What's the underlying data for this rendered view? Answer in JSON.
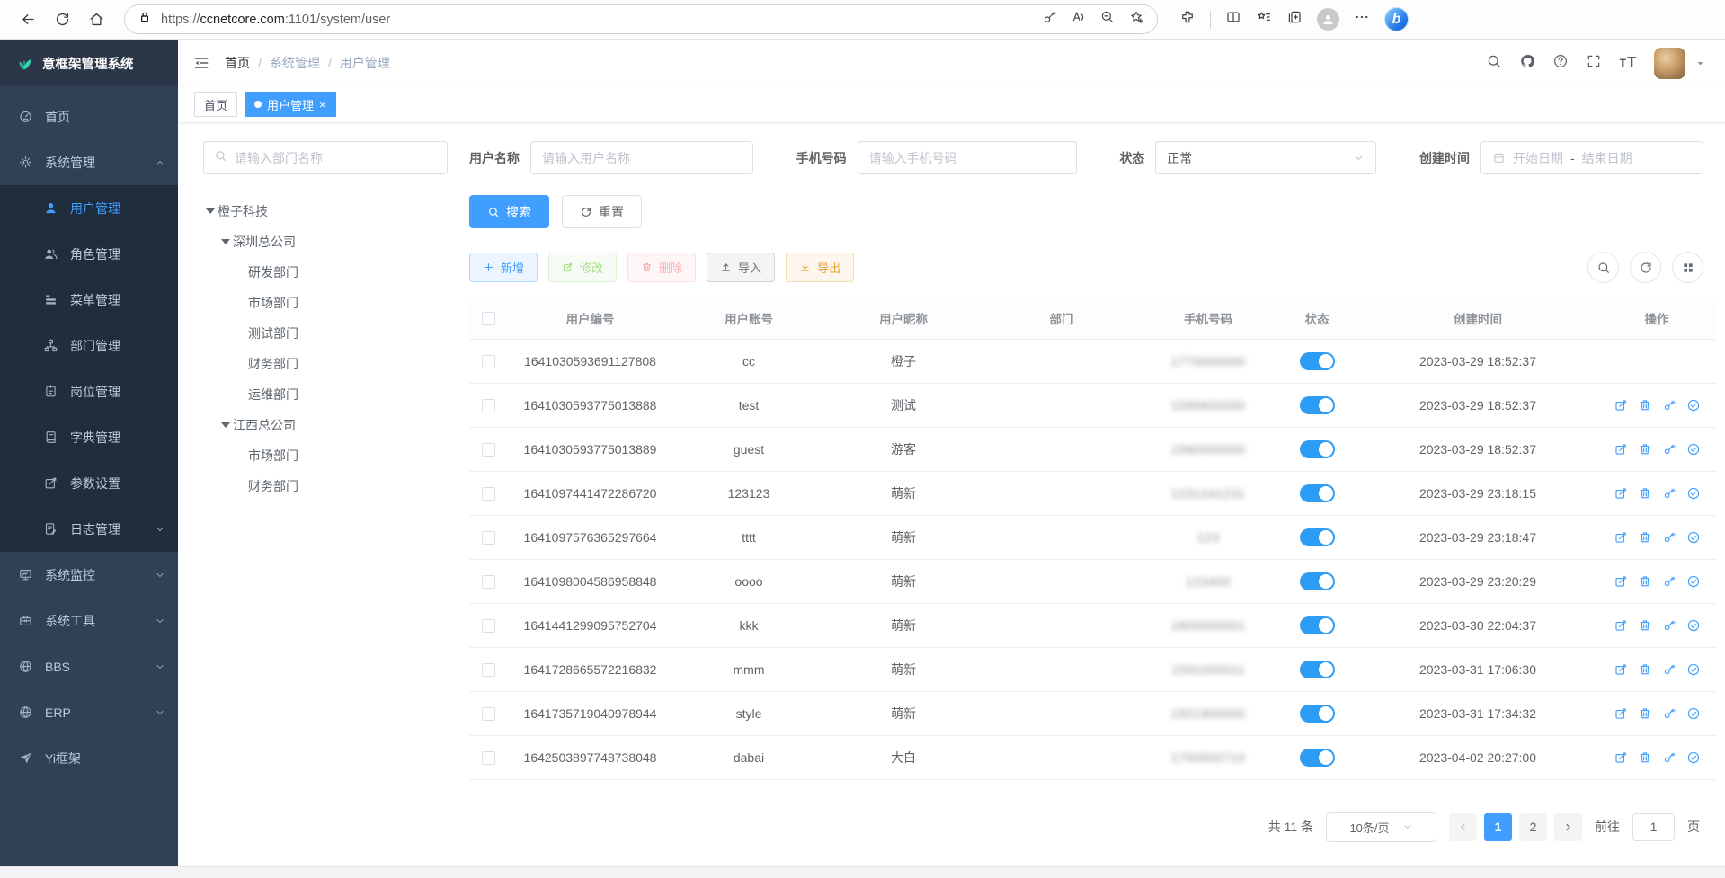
{
  "colors": {
    "primary": "#409eff",
    "sidebar_bg": "#304156",
    "submenu_bg": "#1f2d3d",
    "success": "#67c23a",
    "danger": "#f56c6c",
    "warning": "#e6a23c",
    "info": "#909399",
    "toggle_on": "#2d9cf4"
  },
  "browser": {
    "url_prefix": "https://",
    "url_domain": "ccnetcore.com",
    "url_rest": ":1101/system/user",
    "nav_icons": [
      "back-icon",
      "refresh-icon",
      "home-icon"
    ],
    "address_icons": [
      "lock-icon",
      "key-icon",
      "read-aloud-icon",
      "zoom-out-icon",
      "add-favorite-icon"
    ],
    "toolbar_icons": [
      "extensions-icon",
      "split-screen-icon",
      "favorites-icon",
      "collections-icon",
      "profile-icon",
      "more-icon",
      "copilot-icon"
    ],
    "copilot_glyph": "b"
  },
  "app": {
    "title": "意框架管理系统",
    "logo_icon": "leaf-icon"
  },
  "sidebar": {
    "items": [
      {
        "label": "首页",
        "icon": "dashboard"
      },
      {
        "label": "系统管理",
        "icon": "gear",
        "expanded": true,
        "children": [
          {
            "label": "用户管理",
            "icon": "user",
            "active": true
          },
          {
            "label": "角色管理",
            "icon": "user-group"
          },
          {
            "label": "菜单管理",
            "icon": "menu-list"
          },
          {
            "label": "部门管理",
            "icon": "org-tree"
          },
          {
            "label": "岗位管理",
            "icon": "id-badge"
          },
          {
            "label": "字典管理",
            "icon": "dictionary"
          },
          {
            "label": "参数设置",
            "icon": "param-edit"
          },
          {
            "label": "日志管理",
            "icon": "log-file",
            "collapsible": true
          }
        ]
      },
      {
        "label": "系统监控",
        "icon": "monitor",
        "collapsible": true
      },
      {
        "label": "系统工具",
        "icon": "toolbox",
        "collapsible": true
      },
      {
        "label": "BBS",
        "icon": "globe",
        "collapsible": true
      },
      {
        "label": "ERP",
        "icon": "globe",
        "collapsible": true
      },
      {
        "label": "Yi框架",
        "icon": "paper-plane"
      }
    ]
  },
  "topbar": {
    "breadcrumb": [
      "首页",
      "系统管理",
      "用户管理"
    ],
    "action_icons": [
      "search-icon",
      "github-icon",
      "help-icon",
      "fullscreen-icon",
      "font-size-icon"
    ],
    "font_size_glyph": "тT"
  },
  "tabs": [
    {
      "label": "首页",
      "active": false
    },
    {
      "label": "用户管理",
      "active": true,
      "closable": true
    }
  ],
  "dept_panel": {
    "search_placeholder": "请输入部门名称",
    "tree": [
      {
        "label": "橙子科技",
        "level": 0,
        "expanded": true
      },
      {
        "label": "深圳总公司",
        "level": 1,
        "expanded": true
      },
      {
        "label": "研发部门",
        "level": 2
      },
      {
        "label": "市场部门",
        "level": 2
      },
      {
        "label": "测试部门",
        "level": 2
      },
      {
        "label": "财务部门",
        "level": 2
      },
      {
        "label": "运维部门",
        "level": 2
      },
      {
        "label": "江西总公司",
        "level": 1,
        "expanded": true
      },
      {
        "label": "市场部门",
        "level": 2
      },
      {
        "label": "财务部门",
        "level": 2
      }
    ]
  },
  "filters": {
    "username_label": "用户名称",
    "username_placeholder": "请输入用户名称",
    "phone_label": "手机号码",
    "phone_placeholder": "请输入手机号码",
    "status_label": "状态",
    "status_value": "正常",
    "created_label": "创建时间",
    "date_start_placeholder": "开始日期",
    "date_separator": "-",
    "date_end_placeholder": "结束日期",
    "search_button": "搜索",
    "reset_button": "重置"
  },
  "toolbar": {
    "buttons": [
      {
        "label": "新增",
        "type": "primary",
        "icon": "plus",
        "disabled": false
      },
      {
        "label": "修改",
        "type": "success",
        "icon": "edit-square",
        "disabled": true
      },
      {
        "label": "删除",
        "type": "danger",
        "icon": "trash",
        "disabled": true
      },
      {
        "label": "导入",
        "type": "info",
        "icon": "upload",
        "disabled": false
      },
      {
        "label": "导出",
        "type": "warning",
        "icon": "download",
        "disabled": false
      }
    ],
    "right_icons": [
      "search-icon",
      "refresh-icon",
      "grid-icon"
    ]
  },
  "table": {
    "columns": [
      "用户编号",
      "用户账号",
      "用户昵称",
      "部门",
      "手机号码",
      "状态",
      "创建时间",
      "操作"
    ],
    "op_icons": [
      "edit-square-icon",
      "trash-icon",
      "key-icon",
      "check-circle-icon"
    ],
    "phone_blurred": true,
    "rows": [
      {
        "id": "1641030593691127808",
        "account": "cc",
        "nickname": "橙子",
        "dept": "",
        "phone": "1770000000",
        "status": true,
        "created": "2023-03-29 18:52:37",
        "ops": false
      },
      {
        "id": "1641030593775013888",
        "account": "test",
        "nickname": "测试",
        "dept": "",
        "phone": "1590600000",
        "status": true,
        "created": "2023-03-29 18:52:37",
        "ops": true
      },
      {
        "id": "1641030593775013889",
        "account": "guest",
        "nickname": "游客",
        "dept": "",
        "phone": "1580000000",
        "status": true,
        "created": "2023-03-29 18:52:37",
        "ops": true
      },
      {
        "id": "1641097441472286720",
        "account": "123123",
        "nickname": "萌新",
        "dept": "",
        "phone": "1231241231",
        "status": true,
        "created": "2023-03-29 23:18:15",
        "ops": true
      },
      {
        "id": "1641097576365297664",
        "account": "tttt",
        "nickname": "萌新",
        "dept": "",
        "phone": "123",
        "status": true,
        "created": "2023-03-29 23:18:47",
        "ops": true
      },
      {
        "id": "1641098004586958848",
        "account": "oooo",
        "nickname": "萌新",
        "dept": "",
        "phone": "123400",
        "status": true,
        "created": "2023-03-29 23:20:29",
        "ops": true
      },
      {
        "id": "1641441299095752704",
        "account": "kkk",
        "nickname": "萌新",
        "dept": "",
        "phone": "1800000001",
        "status": true,
        "created": "2023-03-30 22:04:37",
        "ops": true
      },
      {
        "id": "1641728665572216832",
        "account": "mmm",
        "nickname": "萌新",
        "dept": "",
        "phone": "1591000011",
        "status": true,
        "created": "2023-03-31 17:06:30",
        "ops": true
      },
      {
        "id": "1641735719040978944",
        "account": "style",
        "nickname": "萌新",
        "dept": "",
        "phone": "1501900000",
        "status": true,
        "created": "2023-03-31 17:34:32",
        "ops": true
      },
      {
        "id": "1642503897748738048",
        "account": "dabai",
        "nickname": "大白",
        "dept": "",
        "phone": "1700500710",
        "status": true,
        "created": "2023-04-02 20:27:00",
        "ops": true
      }
    ]
  },
  "pagination": {
    "total_text": "共 11 条",
    "page_size": "10条/页",
    "pages": [
      "1",
      "2"
    ],
    "current": "1",
    "goto_label": "前往",
    "goto_value": "1",
    "unit_label": "页"
  }
}
